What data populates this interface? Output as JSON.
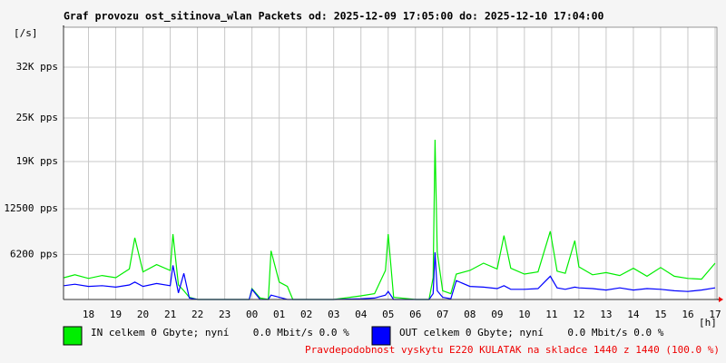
{
  "chart_data": {
    "type": "line",
    "title": "Graf provozu ost_sitinova_wlan Packets od: 2025-12-09 17:05:00 do: 2025-12-10 17:04:00",
    "y_label": "[/s]",
    "x_label": "[h]",
    "note": "Pravdepodobnost vyskytu E220 KULATAK na skladce 1440 z 1440 (100.0 %)",
    "xlim": [
      17.0833,
      41.0667
    ],
    "ylim": [
      0,
      37500
    ],
    "grid": true,
    "xticks": [
      18,
      19,
      20,
      21,
      22,
      23,
      {
        "value": 24,
        "label": "00"
      },
      {
        "value": 25,
        "label": "01"
      },
      {
        "value": 26,
        "label": "02"
      },
      {
        "value": 27,
        "label": "03"
      },
      {
        "value": 28,
        "label": "04"
      },
      {
        "value": 29,
        "label": "05"
      },
      {
        "value": 30,
        "label": "06"
      },
      {
        "value": 31,
        "label": "07"
      },
      {
        "value": 32,
        "label": "08"
      },
      {
        "value": 33,
        "label": "09"
      },
      {
        "value": 34,
        "label": "10"
      },
      {
        "value": 35,
        "label": "11"
      },
      {
        "value": 36,
        "label": "12"
      },
      {
        "value": 37,
        "label": "13"
      },
      {
        "value": 38,
        "label": "14"
      },
      {
        "value": 39,
        "label": "15"
      },
      {
        "value": 40,
        "label": "16"
      },
      {
        "value": 41,
        "label": "17"
      }
    ],
    "yticks": [
      {
        "value": 6200,
        "label": "6200 pps"
      },
      {
        "value": 12500,
        "label": "12500 pps"
      },
      {
        "value": 19000,
        "label": "19K pps"
      },
      {
        "value": 25000,
        "label": "25K pps"
      },
      {
        "value": 32000,
        "label": "32K pps"
      }
    ],
    "x": [
      17.1,
      17.5,
      18,
      18.5,
      19,
      19.5,
      19.7,
      20,
      20.5,
      21,
      21.1,
      21.3,
      21.5,
      21.7,
      22,
      22.5,
      23,
      23.5,
      23.9,
      24,
      24.3,
      24.6,
      24.7,
      25,
      25.3,
      25.5,
      26,
      27,
      28,
      28.5,
      28.9,
      29,
      29.2,
      30,
      30.5,
      30.65,
      30.72,
      30.8,
      31,
      31.3,
      31.5,
      32,
      32.5,
      33,
      33.25,
      33.5,
      34,
      34.5,
      34.95,
      35.2,
      35.5,
      35.85,
      36,
      36.5,
      37,
      37.5,
      38,
      38.5,
      39,
      39.5,
      40,
      40.5,
      41
    ],
    "series": [
      {
        "name": "IN celkem 0 Gbyte; nyní    0.0 Mbit/s 0.0 %",
        "color": "#00ee00",
        "values": [
          3000,
          3400,
          2900,
          3300,
          3000,
          4200,
          8500,
          3800,
          4800,
          4000,
          9000,
          2000,
          1200,
          300,
          0,
          0,
          0,
          0,
          0,
          1500,
          200,
          0,
          6700,
          2400,
          1800,
          0,
          0,
          0,
          500,
          800,
          4000,
          9000,
          300,
          0,
          0,
          3000,
          22000,
          6500,
          1200,
          800,
          3500,
          4000,
          5000,
          4200,
          8800,
          4300,
          3500,
          3800,
          9400,
          3900,
          3600,
          8100,
          4500,
          3400,
          3700,
          3300,
          4300,
          3200,
          4400,
          3200,
          2900,
          2800,
          5000
        ]
      },
      {
        "name": "OUT celkem 0 Gbyte; nyní    0.0 Mbit/s 0.0 %",
        "color": "#0000ff",
        "values": [
          1900,
          2100,
          1800,
          1900,
          1700,
          2000,
          2400,
          1800,
          2200,
          1900,
          4700,
          900,
          3600,
          200,
          0,
          0,
          0,
          0,
          0,
          1400,
          0,
          0,
          600,
          300,
          0,
          0,
          0,
          0,
          100,
          200,
          600,
          1100,
          0,
          0,
          0,
          800,
          6500,
          1200,
          300,
          100,
          2600,
          1800,
          1700,
          1500,
          1900,
          1400,
          1400,
          1500,
          3200,
          1600,
          1400,
          1700,
          1600,
          1500,
          1300,
          1600,
          1300,
          1500,
          1400,
          1200,
          1100,
          1300,
          1600
        ]
      }
    ]
  }
}
